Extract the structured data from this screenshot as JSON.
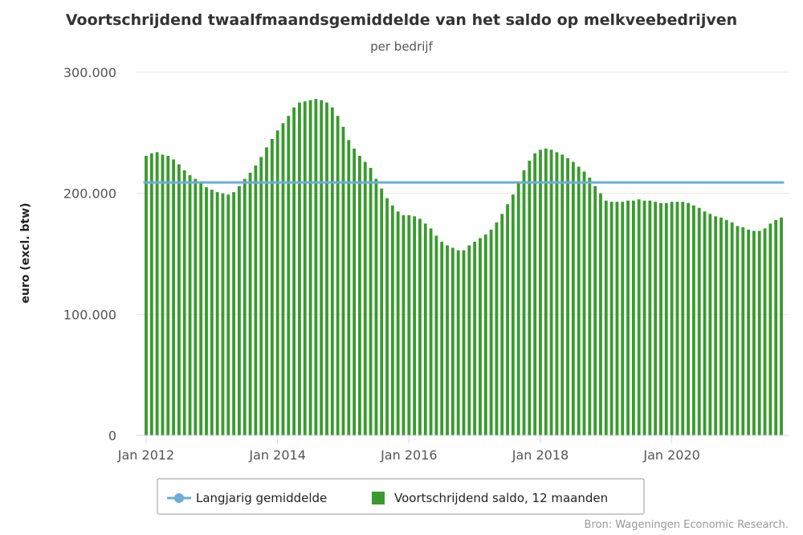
{
  "chart_data": {
    "type": "bar",
    "title": "Voortschrijdend twaalfmaandsgemiddelde van het saldo op melkveebedrijven",
    "subtitle": "per bedrijf",
    "ylabel": "euro (excl. btw)",
    "xlabel": "",
    "ylim": [
      0,
      300000
    ],
    "yticks": [
      0,
      100000,
      200000,
      300000
    ],
    "ytick_labels": [
      "0",
      "100.000",
      "200.000",
      "300.000"
    ],
    "xtick_labels": [
      {
        "label": "Jan 2012",
        "index": 0
      },
      {
        "label": "Jan 2014",
        "index": 24
      },
      {
        "label": "Jan 2016",
        "index": 48
      },
      {
        "label": "Jan 2018",
        "index": 72
      },
      {
        "label": "Jan 2020",
        "index": 96
      }
    ],
    "start": "Jan 2012",
    "grid": true,
    "legend_position": "bottom-center",
    "series": [
      {
        "name": "Voortschrijdend saldo, 12 maanden",
        "kind": "bar",
        "color": "#3a9a2e",
        "values": [
          231000,
          233000,
          234000,
          232000,
          231000,
          228000,
          224000,
          219000,
          215000,
          212000,
          209000,
          205000,
          203000,
          201000,
          200000,
          199000,
          201000,
          206000,
          212000,
          217000,
          223000,
          230000,
          238000,
          245000,
          252000,
          258000,
          264000,
          271000,
          275000,
          276000,
          277000,
          278000,
          277000,
          275000,
          271000,
          264000,
          255000,
          244000,
          237000,
          231000,
          226000,
          221000,
          212000,
          204000,
          196000,
          190000,
          185000,
          182000,
          182000,
          181000,
          179000,
          175000,
          171000,
          165000,
          160000,
          157000,
          155000,
          153000,
          153000,
          157000,
          160000,
          163000,
          166000,
          170000,
          176000,
          183000,
          191000,
          199000,
          209000,
          219000,
          227000,
          233000,
          236000,
          237000,
          236000,
          234000,
          232000,
          229000,
          226000,
          222000,
          218000,
          213000,
          206000,
          200000,
          194000,
          193000,
          193000,
          193000,
          194000,
          194000,
          195000,
          194000,
          194000,
          193000,
          192000,
          192000,
          193000,
          193000,
          193000,
          192000,
          190000,
          188000,
          185000,
          183000,
          181000,
          180000,
          178000,
          176000,
          173000,
          172000,
          170000,
          169000,
          169000,
          171000,
          175000,
          178000,
          180000
        ]
      },
      {
        "name": "Langjarig gemiddelde",
        "kind": "line",
        "color": "#6baed6",
        "value": 209000
      }
    ]
  },
  "credits": "Bron: Wageningen Economic Research."
}
